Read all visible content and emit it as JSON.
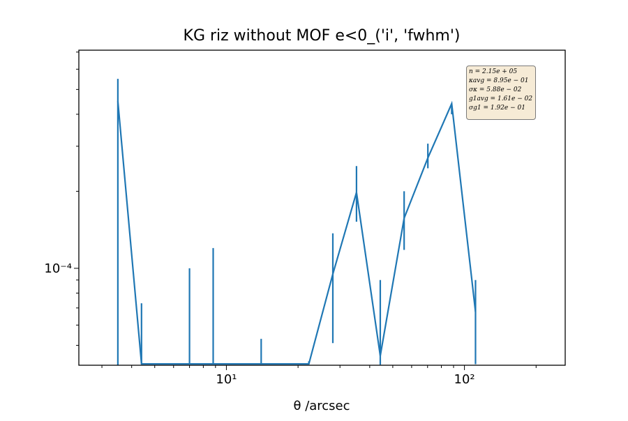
{
  "chart_data": {
    "type": "line",
    "title": "KG riz without MOF e<0_('i', 'fwhm')",
    "xlabel": "θ /arcsec",
    "ylabel": "",
    "xscale": "log",
    "yscale": "log",
    "xlim": [
      2.4,
      265
    ],
    "ylim": [
      4.18e-05,
      0.000712
    ],
    "x_ticks": [
      {
        "value": 10,
        "label": "10¹"
      },
      {
        "value": 100,
        "label": "10²"
      }
    ],
    "y_ticks": [
      {
        "value": 0.0001,
        "label": "10⁻⁴"
      }
    ],
    "grid": false,
    "color": "#1f77b4",
    "series": [
      {
        "x": [
          3.5,
          4.4,
          7.0,
          8.8,
          14.0,
          22.2,
          28.0,
          35.2,
          44.3,
          55.8,
          70.2,
          88.4,
          111.3
        ],
        "y": [
          0.00045,
          4.23e-05,
          4.23e-05,
          4.23e-05,
          4.23e-05,
          4.23e-05,
          9.5e-05,
          0.000198,
          4.55e-05,
          0.000157,
          0.00027,
          0.00044,
          6.75e-05
        ],
        "err_low": [
          0.00045,
          0.0,
          0.0,
          0.0,
          0.0,
          0.0,
          4.4e-05,
          4.6e-05,
          3.5e-06,
          3.9e-05,
          2.4e-05,
          4e-05,
          2.53e-05
        ],
        "err_high": [
          0.0001,
          3.07e-05,
          5.77e-05,
          7.77e-05,
          1.07e-05,
          1e-06,
          4.2e-05,
          5.3e-05,
          4.45e-05,
          4.3e-05,
          3.7e-05,
          0.0,
          2.25e-05
        ]
      }
    ]
  },
  "stats_box": {
    "lines": [
      "n = 2.15e + 05",
      "κavg = 8.95e − 01",
      "σκ = 5.88e − 02",
      "g1avg = 1.61e − 02",
      "σg1 = 1.92e − 01"
    ]
  }
}
